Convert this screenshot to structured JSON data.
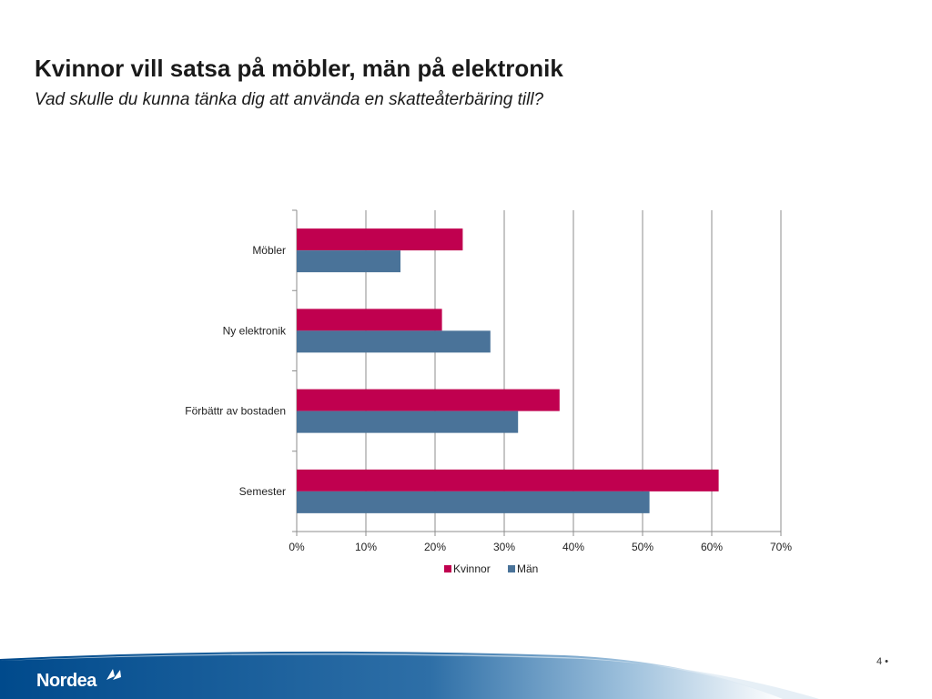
{
  "slide": {
    "title": "Kvinnor vill satsa på möbler, män på elektronik",
    "subtitle": "Vad skulle du kunna tänka dig att använda en skatteåterbäring till?",
    "page_number": "4 •",
    "brand": "Nordea"
  },
  "colors": {
    "kvinnor": "#C0004F",
    "man": "#4A7399",
    "footer_dark": "#004A8C",
    "footer_light": "#CFE0EE"
  },
  "icons": {
    "logo": "nordea-sail-icon"
  },
  "chart_data": {
    "type": "bar",
    "orientation": "horizontal",
    "categories": [
      "Möbler",
      "Ny elektronik",
      "Förbättr av bostaden",
      "Semester"
    ],
    "series": [
      {
        "name": "Kvinnor",
        "values": [
          24,
          21,
          38,
          61
        ]
      },
      {
        "name": "Män",
        "values": [
          15,
          28,
          32,
          51
        ]
      }
    ],
    "x_ticks": [
      "0%",
      "10%",
      "20%",
      "30%",
      "40%",
      "50%",
      "60%",
      "70%"
    ],
    "xlim": [
      0,
      70
    ],
    "unit": "%",
    "grid": "vertical",
    "legend": "bottom"
  }
}
